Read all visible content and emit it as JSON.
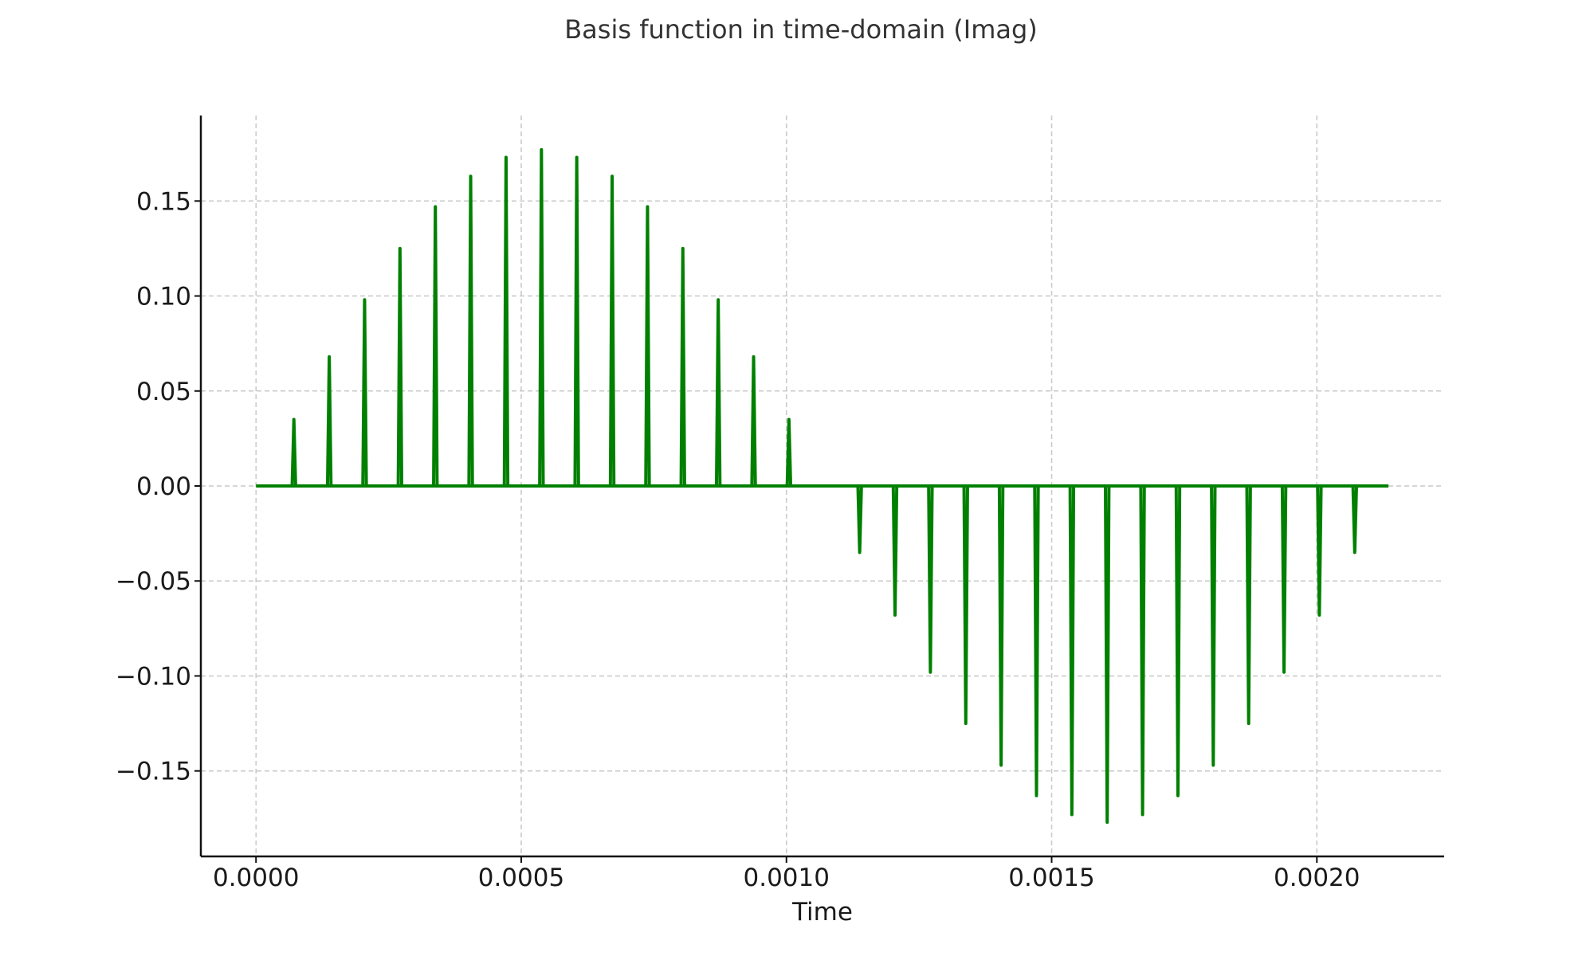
{
  "chart_data": {
    "type": "line",
    "title": "Basis function in time-domain (Imag)",
    "xlabel": "Time",
    "ylabel": "",
    "xlim": [
      -0.000104,
      0.00224
    ],
    "ylim": [
      -0.195,
      0.195
    ],
    "x_ticks": [
      0.0,
      0.0005,
      0.001,
      0.0015,
      0.002
    ],
    "x_tick_labels": [
      "0.0000",
      "0.0005",
      "0.0010",
      "0.0015",
      "0.0020"
    ],
    "y_ticks": [
      0.15,
      0.1,
      0.05,
      0.0,
      -0.05,
      -0.1,
      -0.15
    ],
    "y_tick_labels": [
      "0.15",
      "0.10",
      "0.05",
      "0.00",
      "−0.05",
      "−0.10",
      "−0.15"
    ],
    "grid": true,
    "line_color": "#008000",
    "baseline_x_range": [
      0.0,
      0.002135
    ],
    "series": [
      {
        "x": [
          7.14e-05,
          0.0001381,
          0.0002047,
          0.0002714,
          0.0003381,
          0.0004047,
          0.0004714,
          0.0005381,
          0.0006047,
          0.0006714,
          0.0007381,
          0.0008047,
          0.0008714,
          0.0009381,
          0.0010047,
          0.0011381,
          0.0012047,
          0.0012714,
          0.0013381,
          0.0014047,
          0.0014714,
          0.0015381,
          0.0016047,
          0.0016714,
          0.0017381,
          0.0018047,
          0.0018714,
          0.0019381,
          0.0020047,
          0.0020714
        ],
        "y": [
          0.035,
          0.068,
          0.098,
          0.125,
          0.147,
          0.163,
          0.173,
          0.177,
          0.173,
          0.163,
          0.147,
          0.125,
          0.098,
          0.068,
          0.035,
          -0.035,
          -0.068,
          -0.098,
          -0.125,
          -0.147,
          -0.163,
          -0.173,
          -0.177,
          -0.173,
          -0.163,
          -0.147,
          -0.125,
          -0.098,
          -0.068,
          -0.035
        ]
      }
    ]
  }
}
